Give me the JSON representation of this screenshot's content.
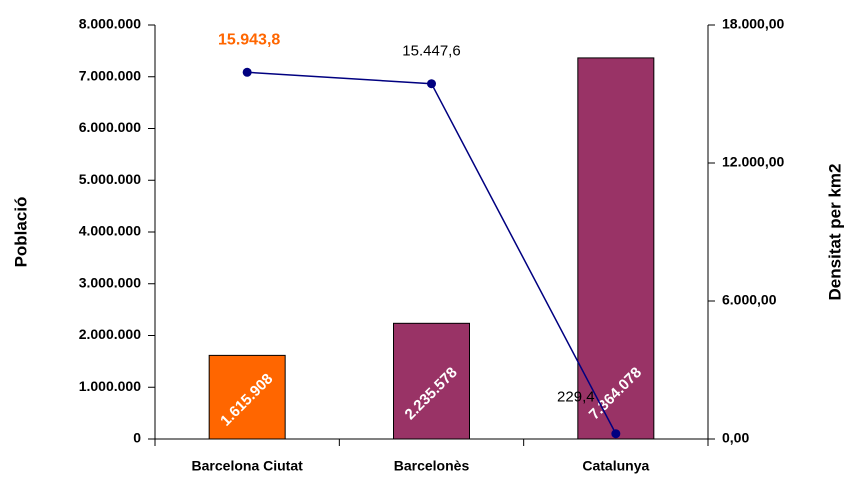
{
  "chart_data": {
    "type": "bar-line",
    "categories": [
      "Barcelona Ciutat",
      "Barcelonès",
      "Catalunya"
    ],
    "series": [
      {
        "type": "bar",
        "colors": [
          "#ff6600",
          "#993366",
          "#993366"
        ],
        "values": [
          1615908,
          2235578,
          7364078
        ],
        "value_labels": [
          "1.615.908",
          "2.235.578",
          "7.364.078"
        ]
      },
      {
        "type": "line",
        "axis": "y2",
        "color": "#000080",
        "values": [
          15943.8,
          15447.6,
          229.4
        ],
        "value_labels": [
          "15.943,8",
          "15.447,6",
          "229,4"
        ],
        "value_label_colors": [
          "#ff6600",
          "#000000",
          "#000000"
        ]
      }
    ],
    "ylabel": "Població",
    "y2label": "Densitat per km2",
    "ylim": [
      0,
      8000000
    ],
    "yticks": [
      0,
      {
        "value": 1000000,
        "label": "1.000.000"
      },
      {
        "value": 2000000,
        "label": "2.000.000"
      },
      {
        "value": 3000000,
        "label": "3.000.000"
      },
      {
        "value": 4000000,
        "label": "4.000.000"
      },
      {
        "value": 5000000,
        "label": "5.000.000"
      },
      {
        "value": 6000000,
        "label": "6.000.000"
      },
      {
        "value": 7000000,
        "label": "7.000.000"
      },
      {
        "value": 8000000,
        "label": "8.000.000"
      }
    ],
    "y2lim": [
      0,
      18000
    ],
    "y2ticks": [
      {
        "value": 0,
        "label": "0,00"
      },
      {
        "value": 6000,
        "label": "6.000,00"
      },
      {
        "value": 12000,
        "label": "12.000,00"
      },
      {
        "value": 18000,
        "label": "18.000,00"
      }
    ]
  }
}
